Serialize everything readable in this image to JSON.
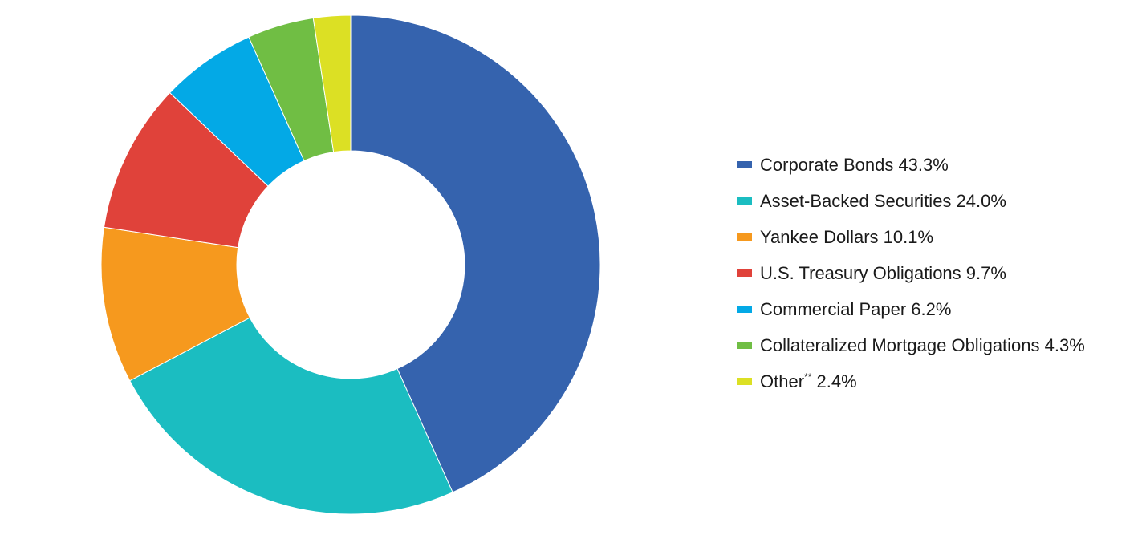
{
  "chart_data": {
    "type": "pie",
    "donut": true,
    "title": "",
    "categories": [
      "Corporate Bonds",
      "Asset-Backed Securities",
      "Yankee Dollars",
      "U.S. Treasury Obligations",
      "Commercial Paper",
      "Collateralized Mortgage Obligations",
      "Other"
    ],
    "values": [
      43.3,
      24.0,
      10.1,
      9.7,
      6.2,
      4.3,
      2.4
    ],
    "value_labels": [
      "43.3%",
      "24.0%",
      "10.1%",
      "9.7%",
      "6.2%",
      "4.3%",
      "2.4%"
    ],
    "footnote_marks": [
      "",
      "",
      "",
      "",
      "",
      "",
      "**"
    ],
    "colors": [
      "#3563AE",
      "#1BBDC1",
      "#F6991E",
      "#E0423A",
      "#03A9E6",
      "#70BE44",
      "#DCE024"
    ],
    "start_angle_deg": 0,
    "direction": "clockwise",
    "legend_position": "right"
  }
}
